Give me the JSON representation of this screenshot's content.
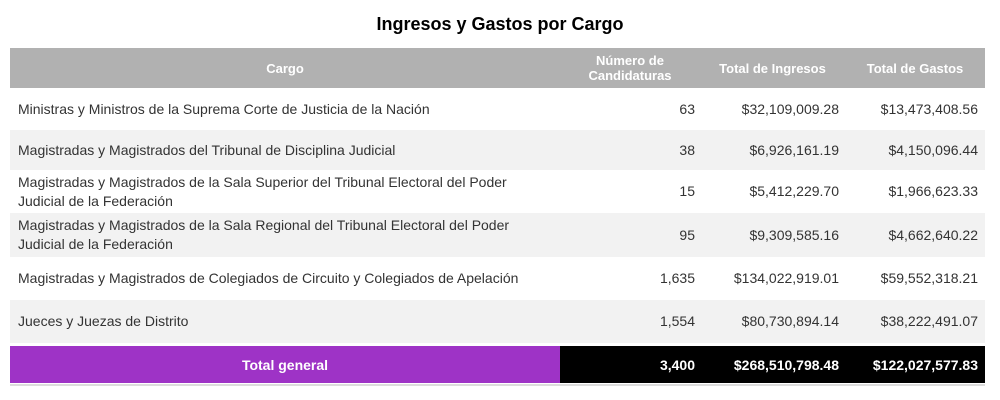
{
  "page": {
    "title": "Ingresos y Gastos por Cargo"
  },
  "chart_data": {
    "type": "table",
    "title": "Ingresos y Gastos por Cargo",
    "columns": [
      "Cargo",
      "Número de Candidaturas",
      "Total de Ingresos",
      "Total de Gastos"
    ],
    "rows": [
      {
        "cargo": "Ministras y Ministros de la Suprema Corte de Justicia de la Nación",
        "candidaturas": "63",
        "ingresos": "$32,109,009.28",
        "gastos": "$13,473,408.56"
      },
      {
        "cargo": "Magistradas y Magistrados del Tribunal de Disciplina Judicial",
        "candidaturas": "38",
        "ingresos": "$6,926,161.19",
        "gastos": "$4,150,096.44"
      },
      {
        "cargo": "Magistradas y Magistrados de la Sala Superior del Tribunal Electoral del Poder Judicial de la Federación",
        "candidaturas": "15",
        "ingresos": "$5,412,229.70",
        "gastos": "$1,966,623.33"
      },
      {
        "cargo": "Magistradas y Magistrados de la Sala Regional del Tribunal Electoral del Poder Judicial de la Federación",
        "candidaturas": "95",
        "ingresos": "$9,309,585.16",
        "gastos": "$4,662,640.22"
      },
      {
        "cargo": "Magistradas y Magistrados de Colegiados de Circuito y Colegiados de Apelación",
        "candidaturas": "1,635",
        "ingresos": "$134,022,919.01",
        "gastos": "$59,552,318.21"
      },
      {
        "cargo": "Jueces y Juezas de Distrito",
        "candidaturas": "1,554",
        "ingresos": "$80,730,894.14",
        "gastos": "$38,222,491.07"
      }
    ],
    "total": {
      "label": "Total general",
      "candidaturas": "3,400",
      "ingresos": "$268,510,798.48",
      "gastos": "$122,027,577.83"
    },
    "layout": {
      "legend": false,
      "grid": false,
      "striped": true,
      "value_alignment": "right"
    }
  },
  "colors": {
    "header_bg": "#B1B1B1",
    "header_text": "#FFFFFF",
    "alt_row_bg": "#F2F2F2",
    "total_label_bg": "#9E33C6",
    "total_values_bg": "#000000",
    "total_text": "#FFFFFF",
    "body_text": "#333333",
    "title_text": "#000000",
    "border_line": "#DCDCDC"
  }
}
